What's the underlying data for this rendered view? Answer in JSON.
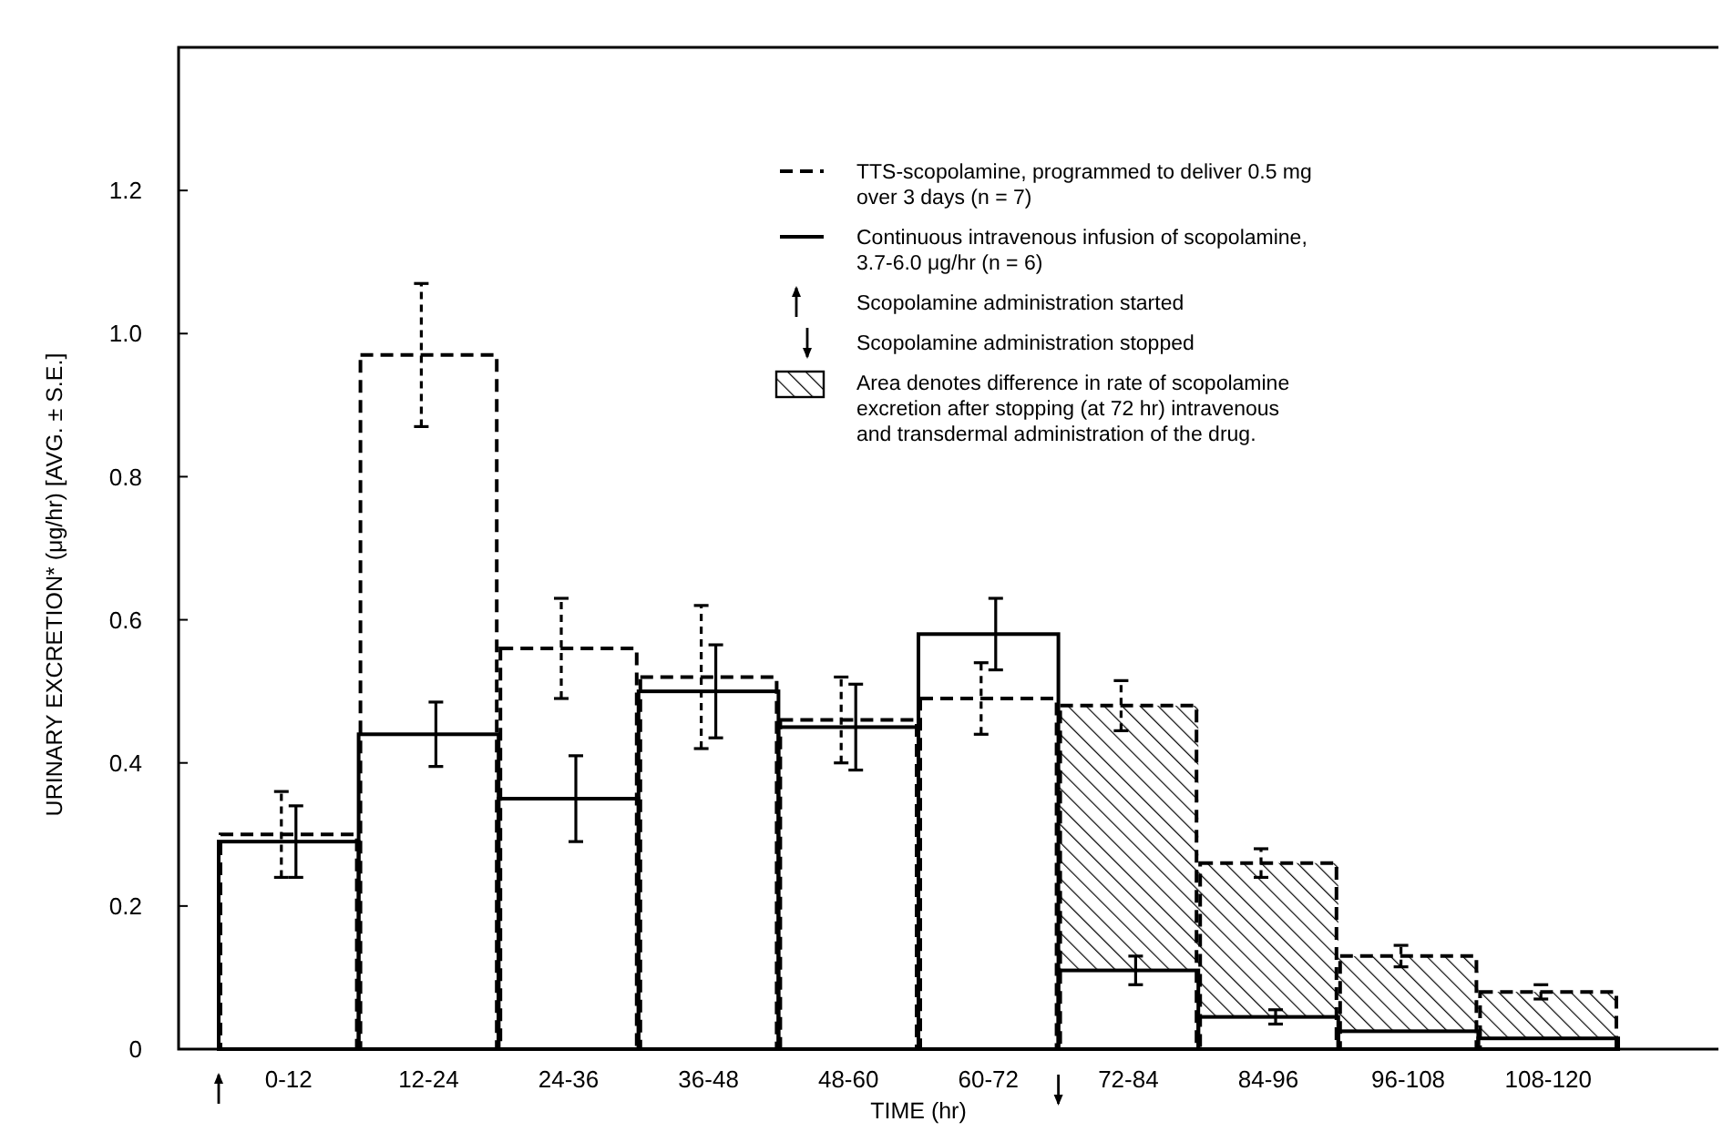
{
  "chart_data": {
    "type": "bar",
    "xlabel": "TIME (hr)",
    "ylabel": "URINARY EXCRETION* (μg/hr) [AVG. ± S.E.]",
    "categories": [
      "0-12",
      "12-24",
      "24-36",
      "36-48",
      "48-60",
      "60-72",
      "72-84",
      "84-96",
      "96-108",
      "108-120"
    ],
    "series": [
      {
        "name": "TTS-scopolamine, programmed to deliver 0.5 mg over 3 days (n = 7)",
        "color": "#000000",
        "line_style": "dashed",
        "values": [
          0.3,
          0.97,
          0.56,
          0.52,
          0.46,
          0.49,
          0.48,
          0.26,
          0.13,
          0.08
        ],
        "errors": [
          0.06,
          0.1,
          0.07,
          0.1,
          0.06,
          0.05,
          0.035,
          0.02,
          0.015,
          0.01
        ]
      },
      {
        "name": "Continuous intravenous infusion of scopolamine, 3.7-6.0 μg/hr (n = 6)",
        "color": "#000000",
        "line_style": "solid",
        "values": [
          0.29,
          0.44,
          0.35,
          0.5,
          0.45,
          0.58,
          0.11,
          0.045,
          0.025,
          0.015
        ],
        "errors": [
          0.05,
          0.045,
          0.06,
          0.065,
          0.06,
          0.05,
          0.02,
          0.01,
          null,
          null
        ]
      },
      {
        "name": "Area denotes difference in rate of scopolamine excretion after stopping (at 72 hr) intravenous and transdermal administration of the drug.",
        "color": "#000000",
        "base": [
          null,
          null,
          null,
          null,
          null,
          null,
          0.11,
          0.045,
          0.025,
          0.015
        ],
        "values": [
          null,
          null,
          null,
          null,
          null,
          null,
          0.37,
          0.215,
          0.105,
          0.065
        ]
      }
    ],
    "annotations": [
      "Scopolamine administration started",
      "Scopolamine administration stopped"
    ],
    "ylim": [
      0,
      1.4
    ],
    "yticks": [
      0,
      0.2,
      0.4,
      0.6,
      0.8,
      {
        "value": 1,
        "label": "1.0"
      },
      1.2
    ],
    "legend": "top right"
  }
}
